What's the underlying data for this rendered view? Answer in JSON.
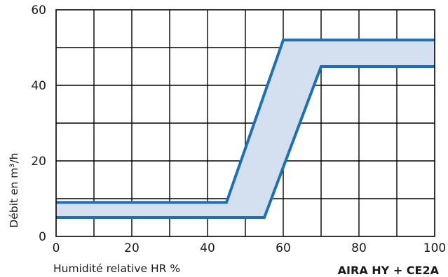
{
  "chart_data": {
    "type": "area",
    "xlabel": "Humidité relative HR %",
    "ylabel": "Débit en m³/h",
    "product_label": "AIRA HY + CE2A",
    "xlim": [
      0,
      100
    ],
    "ylim": [
      0,
      60
    ],
    "x_ticks": [
      "0",
      "20",
      "40",
      "60",
      "80",
      "100"
    ],
    "y_ticks": [
      "0",
      "20",
      "40",
      "60"
    ],
    "grid": true,
    "x_grid_step": 10,
    "y_grid_step": 10,
    "series": [
      {
        "x": [
          0,
          45,
          60,
          100
        ],
        "y": [
          9,
          9,
          52,
          52
        ]
      },
      {
        "x": [
          0,
          55,
          70,
          100
        ],
        "y": [
          5,
          5,
          45,
          45
        ]
      }
    ],
    "colors": {
      "line": "#1f6fb2",
      "fill": "#d4dff0",
      "grid": "#000000"
    }
  }
}
